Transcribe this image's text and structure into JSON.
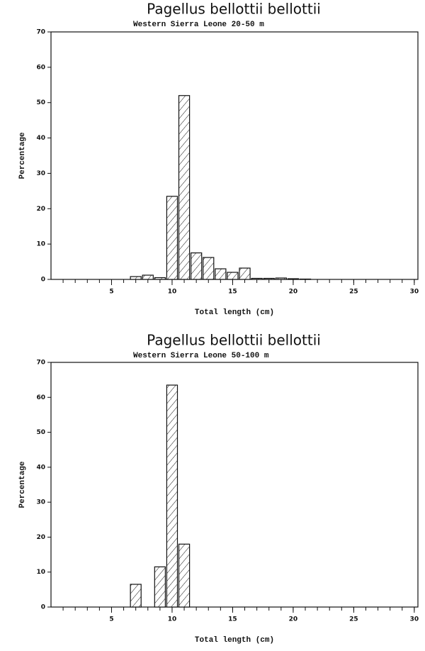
{
  "chart_data": [
    {
      "type": "histogram",
      "title": "Pagellus bellottii bellottii",
      "subtitle": "Western Sierra Leone 20-50 m",
      "xlabel": "Total length (cm)",
      "ylabel": "Percentage",
      "bins": [
        6.5,
        7.5,
        8.5,
        9.5,
        10.5,
        11.5,
        12.5,
        13.5,
        14.5,
        15.5,
        16.5,
        17.5,
        18.5,
        19.5,
        20.5,
        21.5
      ],
      "values": [
        0.8,
        1.2,
        0.5,
        23.5,
        52,
        7.5,
        6.2,
        3,
        2,
        3.2,
        0.3,
        0.3,
        0.4,
        0.2,
        0.1
      ],
      "xlim": [
        0,
        30.3
      ],
      "ylim": [
        0,
        70
      ],
      "xticks": [
        5,
        10,
        15,
        20,
        25,
        30
      ],
      "xminorticks": [
        1,
        2,
        3,
        4,
        5,
        6,
        7,
        8,
        9,
        10,
        11,
        12,
        13,
        14,
        15,
        16,
        17,
        18,
        19,
        20,
        21,
        22,
        23,
        24,
        25,
        26,
        27,
        28,
        29,
        30
      ],
      "yticks": [
        0,
        10,
        20,
        30,
        40,
        50,
        60,
        70
      ],
      "color": "#111111"
    },
    {
      "type": "histogram",
      "title": "Pagellus bellottii bellottii",
      "subtitle": "Western Sierra Leone 50-100 m",
      "xlabel": "Total length (cm)",
      "ylabel": "Percentage",
      "bins": [
        6.5,
        7.5,
        8.5,
        9.5,
        10.5,
        11.5
      ],
      "values": [
        6.5,
        0,
        11.5,
        63.5,
        18
      ],
      "xlim": [
        0,
        30.3
      ],
      "ylim": [
        0,
        70
      ],
      "xticks": [
        5,
        10,
        15,
        20,
        25,
        30
      ],
      "xminorticks": [
        1,
        2,
        3,
        4,
        5,
        6,
        7,
        8,
        9,
        10,
        11,
        12,
        13,
        14,
        15,
        16,
        17,
        18,
        19,
        20,
        21,
        22,
        23,
        24,
        25,
        26,
        27,
        28,
        29,
        30
      ],
      "yticks": [
        0,
        10,
        20,
        30,
        40,
        50,
        60,
        70
      ],
      "color": "#111111"
    }
  ]
}
